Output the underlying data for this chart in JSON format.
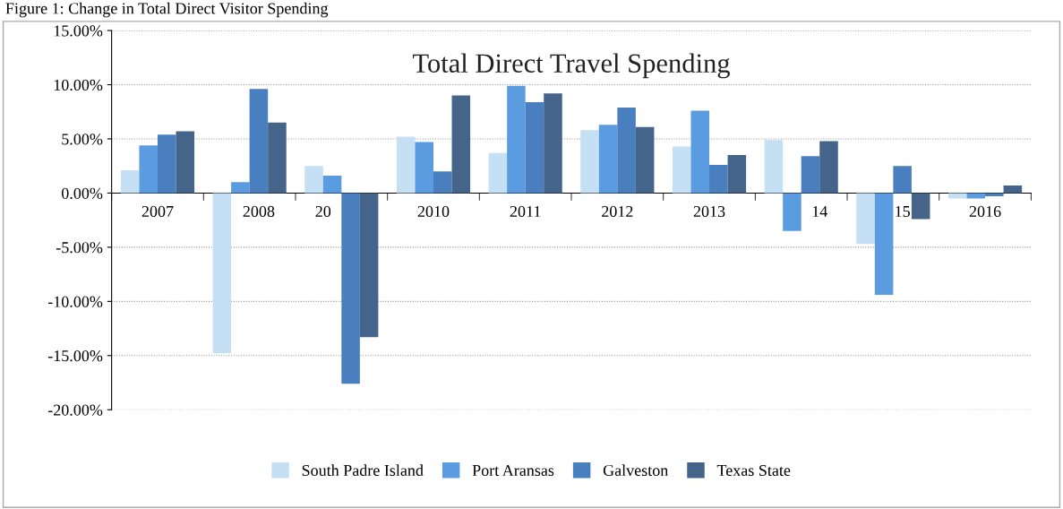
{
  "chart_data": {
    "type": "bar",
    "title": "Total Direct Travel Spending",
    "annotations": [
      "Figure 1: Change in Total Direct Visitor Spending"
    ],
    "categories": [
      "2007",
      "2008",
      "20",
      "2010",
      "2011",
      "2012",
      "2013",
      "14",
      "15",
      "2016"
    ],
    "series": [
      {
        "name": "South Padre Island",
        "color": "#c5e0f4",
        "values": [
          2.1,
          -14.8,
          2.5,
          5.2,
          3.7,
          5.8,
          4.3,
          4.9,
          -4.7,
          -0.5
        ]
      },
      {
        "name": "Port Aransas",
        "color": "#5b9be0",
        "values": [
          4.4,
          1.0,
          1.6,
          4.7,
          9.9,
          6.3,
          7.6,
          -3.5,
          -9.4,
          -0.5
        ]
      },
      {
        "name": "Galveston",
        "color": "#4a7fbf",
        "values": [
          5.4,
          9.6,
          -17.6,
          2.0,
          8.4,
          7.9,
          2.6,
          3.4,
          2.5,
          -0.3
        ]
      },
      {
        "name": "Texas State",
        "color": "#44648a",
        "values": [
          5.7,
          6.5,
          -13.3,
          9.0,
          9.2,
          6.1,
          3.5,
          4.8,
          -2.4,
          0.7
        ]
      }
    ],
    "ylim": [
      -20,
      15
    ],
    "yticks": [
      {
        "value": -20,
        "label": "-20.00%"
      },
      {
        "value": -15,
        "label": "-15.00%"
      },
      {
        "value": -10,
        "label": "-10.00%"
      },
      {
        "value": -5,
        "label": "-5.00%"
      },
      {
        "value": 0,
        "label": "0.00%"
      },
      {
        "value": 5,
        "label": "5.00%"
      },
      {
        "value": 10,
        "label": "10.00%"
      },
      {
        "value": 15,
        "label": "15.00%"
      }
    ],
    "grid": "y",
    "legend": "bottom"
  }
}
